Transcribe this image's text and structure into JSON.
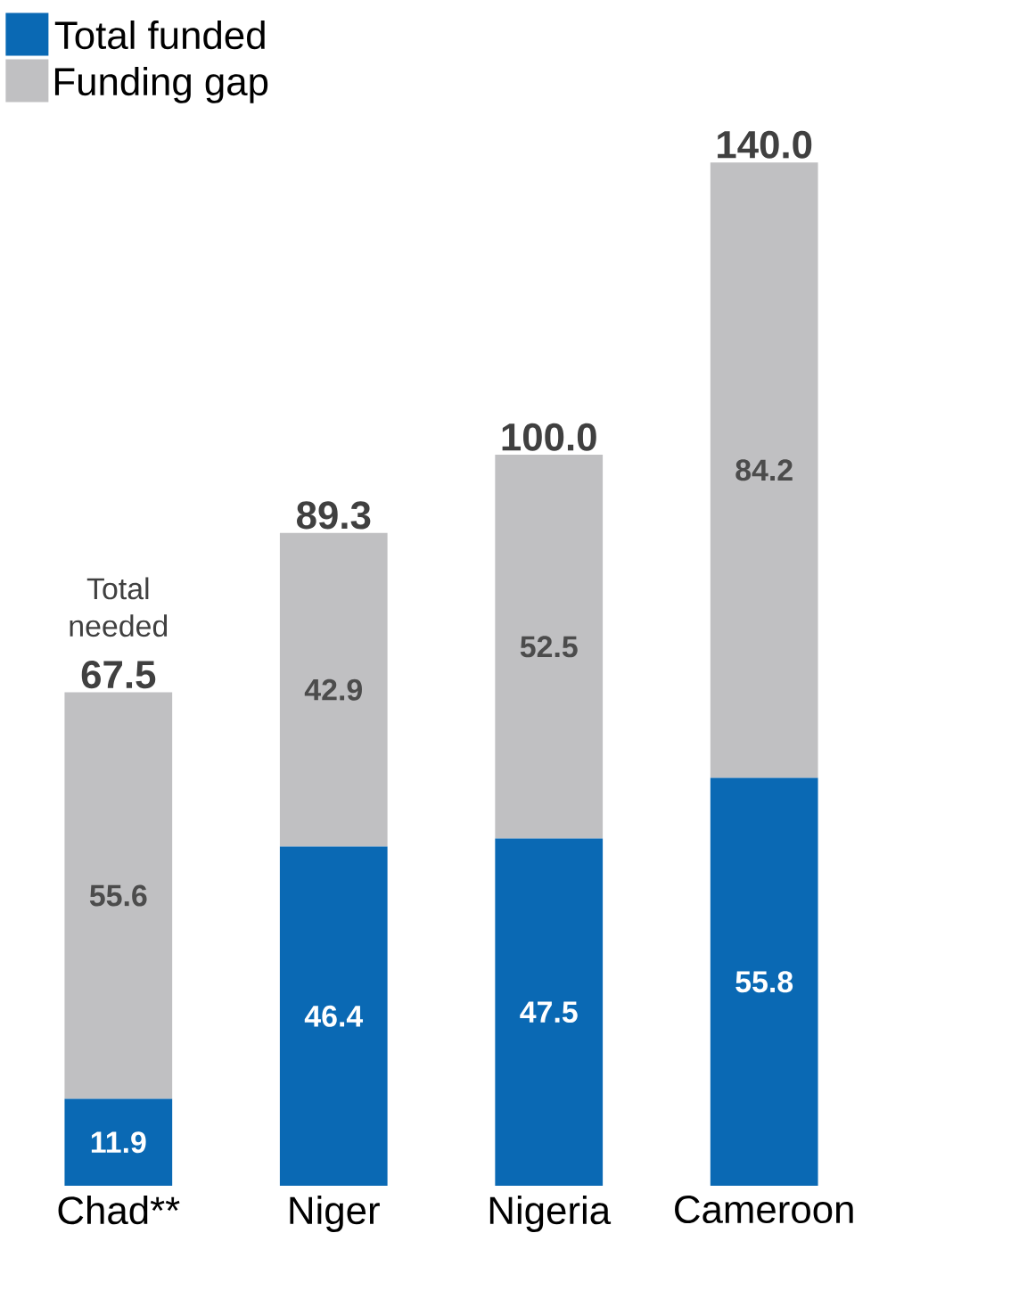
{
  "chart_data": {
    "type": "bar",
    "stacked": true,
    "categories": [
      "Chad**",
      "Niger",
      "Nigeria",
      "Cameroon"
    ],
    "series": [
      {
        "name": "Total funded",
        "color": "#0a69b4",
        "values": [
          11.9,
          46.4,
          47.5,
          55.8
        ]
      },
      {
        "name": "Funding gap",
        "color": "#c0c0c2",
        "values": [
          55.6,
          42.9,
          52.5,
          84.2
        ]
      }
    ],
    "totals": [
      "67.5",
      "89.3",
      "100.0",
      "140.0"
    ],
    "annotations": [
      {
        "text": "Total needed",
        "x": "Chad**",
        "y": 67.5
      }
    ],
    "data_labels": true,
    "legend": "top left"
  }
}
